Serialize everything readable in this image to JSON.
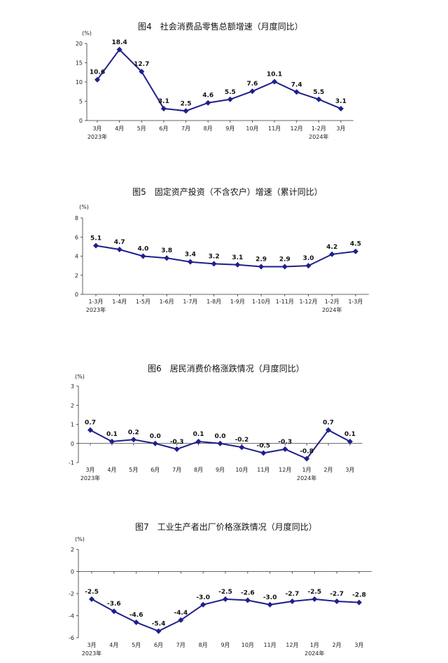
{
  "colors": {
    "series": "#1f1f8c",
    "axis": "#333333"
  },
  "chart_data": [
    {
      "type": "line",
      "title": "图4　社会消费品零售总额增速（月度同比）",
      "unit": "(%)",
      "categories": [
        "3月",
        "4月",
        "5月",
        "6月",
        "7月",
        "8月",
        "9月",
        "10月",
        "11月",
        "12月",
        "1-2月",
        "3月"
      ],
      "year_labels": [
        {
          "index": 0,
          "text": "2023年"
        },
        {
          "index": 10,
          "text": "2024年"
        }
      ],
      "values": [
        10.6,
        18.4,
        12.7,
        3.1,
        2.5,
        4.6,
        5.5,
        7.6,
        10.1,
        7.4,
        5.5,
        3.1
      ],
      "value_labels": [
        "10.6",
        "18.4",
        "12.7",
        "3.1",
        "2.5",
        "4.6",
        "5.5",
        "7.6",
        "10.1",
        "7.4",
        "5.5",
        "3.1"
      ],
      "ylim": [
        0,
        20
      ],
      "yticks": [
        0,
        5,
        10,
        15,
        20
      ]
    },
    {
      "type": "line",
      "title": "图5　固定资产投资（不含农户）增速（累计同比）",
      "unit": "(%)",
      "categories": [
        "1-3月",
        "1-4月",
        "1-5月",
        "1-6月",
        "1-7月",
        "1-8月",
        "1-9月",
        "1-10月",
        "1-11月",
        "1-12月",
        "1-2月",
        "1-3月"
      ],
      "year_labels": [
        {
          "index": 0,
          "text": "2023年"
        },
        {
          "index": 10,
          "text": "2024年"
        }
      ],
      "values": [
        5.1,
        4.7,
        4.0,
        3.8,
        3.4,
        3.2,
        3.1,
        2.9,
        2.9,
        3.0,
        4.2,
        4.5
      ],
      "value_labels": [
        "5.1",
        "4.7",
        "4.0",
        "3.8",
        "3.4",
        "3.2",
        "3.1",
        "2.9",
        "2.9",
        "3.0",
        "4.2",
        "4.5"
      ],
      "ylim": [
        0,
        8
      ],
      "yticks": [
        0,
        2,
        4,
        6,
        8
      ]
    },
    {
      "type": "line",
      "title": "图6　居民消费价格涨跌情况（月度同比）",
      "unit": "(%)",
      "categories": [
        "3月",
        "4月",
        "5月",
        "6月",
        "7月",
        "8月",
        "9月",
        "10月",
        "11月",
        "12月",
        "1月",
        "2月",
        "3月"
      ],
      "year_labels": [
        {
          "index": 0,
          "text": "2023年"
        },
        {
          "index": 10,
          "text": "2024年"
        }
      ],
      "values": [
        0.7,
        0.1,
        0.2,
        0.0,
        -0.3,
        0.1,
        0.0,
        -0.2,
        -0.5,
        -0.3,
        -0.8,
        0.7,
        0.1
      ],
      "value_labels": [
        "0.7",
        "0.1",
        "0.2",
        "0.0",
        "-0.3",
        "0.1",
        "0.0",
        "-0.2",
        "-0.5",
        "-0.3",
        "-0.8",
        "0.7",
        "0.1"
      ],
      "ylim": [
        -1,
        3
      ],
      "yticks": [
        -1,
        0,
        1,
        2,
        3
      ]
    },
    {
      "type": "line",
      "title": "图7　工业生产者出厂价格涨跌情况（月度同比）",
      "unit": "(%)",
      "categories": [
        "3月",
        "4月",
        "5月",
        "6月",
        "7月",
        "8月",
        "9月",
        "10月",
        "11月",
        "12月",
        "1月",
        "2月",
        "3月"
      ],
      "year_labels": [
        {
          "index": 0,
          "text": "2023年"
        },
        {
          "index": 10,
          "text": "2024年"
        }
      ],
      "values": [
        -2.5,
        -3.6,
        -4.6,
        -5.4,
        -4.4,
        -3.0,
        -2.5,
        -2.6,
        -3.0,
        -2.7,
        -2.5,
        -2.7,
        -2.8
      ],
      "value_labels": [
        "-2.5",
        "-3.6",
        "-4.6",
        "-5.4",
        "-4.4",
        "-3.0",
        "-2.5",
        "-2.6",
        "-3.0",
        "-2.7",
        "-2.5",
        "-2.7",
        "-2.8"
      ],
      "ylim": [
        -6,
        2
      ],
      "yticks": [
        -6,
        -4,
        -2,
        0,
        2
      ]
    }
  ]
}
